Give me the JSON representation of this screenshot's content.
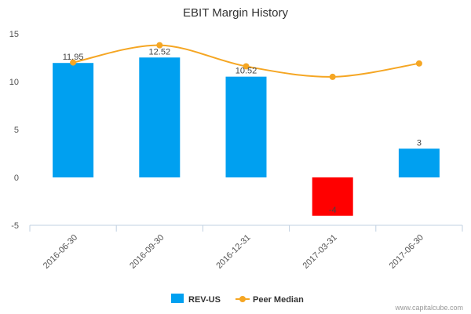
{
  "chart_data": {
    "type": "bar",
    "title": "EBIT Margin History",
    "categories": [
      "2016-06-30",
      "2016-09-30",
      "2016-12-31",
      "2017-03-31",
      "2017-06-30"
    ],
    "series": [
      {
        "name": "REV-US",
        "type": "bar",
        "values": [
          11.95,
          12.52,
          10.52,
          -4,
          3
        ],
        "labels": [
          "11.95",
          "12.52",
          "10.52",
          "-4",
          "3"
        ],
        "color": "#00a0f0",
        "negative_color": "#ff0000"
      },
      {
        "name": "Peer Median",
        "type": "line",
        "smooth": true,
        "values": [
          12.0,
          13.8,
          11.6,
          10.5,
          11.9
        ],
        "color": "#f5a623"
      }
    ],
    "yticks": [
      "-5",
      "0",
      "5",
      "10",
      "15"
    ],
    "ylim": [
      -5,
      15
    ],
    "grid": false,
    "legend": "bottom-center",
    "xlabel": "",
    "ylabel": ""
  },
  "footer": {
    "credit": "www.capitalcube.com"
  }
}
